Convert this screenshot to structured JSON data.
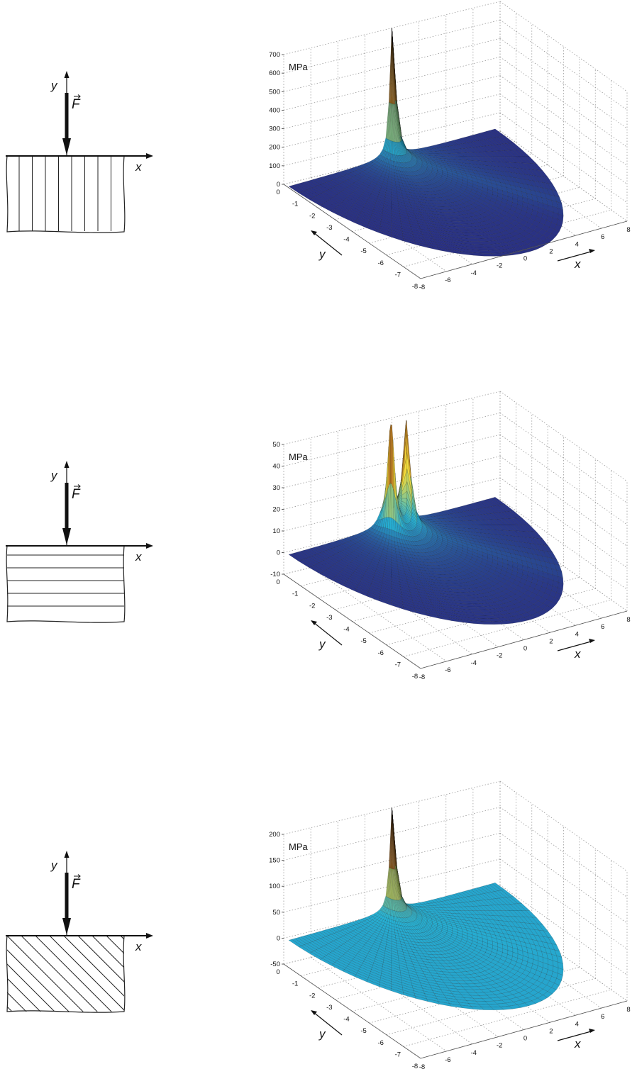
{
  "colors": {
    "low": "#2a2a7e",
    "mid": "#26b4d6",
    "high": "#f7dc3a",
    "peak": "#7a1010",
    "grid": "#9a9a9a"
  },
  "panels": [
    {
      "sketch": {
        "y_label": "y",
        "x_label": "x",
        "force_label": "F",
        "pattern": "vertical-lines"
      },
      "chart_data": {
        "type": "surface3d",
        "unit": "MPa",
        "zticks": [
          "700",
          "600",
          "500",
          "400",
          "300",
          "200",
          "100",
          "0"
        ],
        "zlim": [
          0,
          700
        ],
        "yticks": [
          "0",
          "-1",
          "-2",
          "-3",
          "-4",
          "-5",
          "-6",
          "-7",
          "-8"
        ],
        "xticks": [
          "-8",
          "-6",
          "-4",
          "-2",
          "0",
          "2",
          "4",
          "6",
          "8"
        ],
        "xlim": [
          -8,
          8
        ],
        "ylim": [
          -8,
          0
        ],
        "y_axis_label": "y",
        "x_axis_label": "x",
        "peaks": [
          {
            "x": 0,
            "y": 0,
            "z": 700
          }
        ]
      }
    },
    {
      "sketch": {
        "y_label": "y",
        "x_label": "x",
        "force_label": "F",
        "pattern": "horizontal-lines"
      },
      "chart_data": {
        "type": "surface3d",
        "unit": "MPa",
        "zticks": [
          "50",
          "40",
          "30",
          "20",
          "10",
          "0",
          "-10"
        ],
        "zlim": [
          -10,
          50
        ],
        "yticks": [
          "0",
          "-1",
          "-2",
          "-3",
          "-4",
          "-5",
          "-6",
          "-7",
          "-8"
        ],
        "xticks": [
          "-8",
          "-6",
          "-4",
          "-2",
          "0",
          "2",
          "4",
          "6",
          "8"
        ],
        "xlim": [
          -8,
          8
        ],
        "ylim": [
          -8,
          0
        ],
        "y_axis_label": "y",
        "x_axis_label": "x",
        "peaks": [
          {
            "x": -0.6,
            "y": -0.4,
            "z": 50
          },
          {
            "x": 0.6,
            "y": -0.4,
            "z": 50
          }
        ]
      }
    },
    {
      "sketch": {
        "y_label": "y",
        "x_label": "x",
        "force_label": "F",
        "pattern": "diagonal-lines"
      },
      "chart_data": {
        "type": "surface3d",
        "unit": "MPa",
        "zticks": [
          "200",
          "150",
          "100",
          "50",
          "0",
          "-50"
        ],
        "zlim": [
          -50,
          200
        ],
        "yticks": [
          "0",
          "-1",
          "-2",
          "-3",
          "-4",
          "-5",
          "-6",
          "-7",
          "-8"
        ],
        "xticks": [
          "-8",
          "-6",
          "-4",
          "-2",
          "0",
          "2",
          "4",
          "6",
          "8"
        ],
        "xlim": [
          -8,
          8
        ],
        "ylim": [
          -8,
          0
        ],
        "y_axis_label": "y",
        "x_axis_label": "x",
        "peaks": [
          {
            "x": 0,
            "y": 0,
            "z": 200
          }
        ]
      }
    }
  ]
}
